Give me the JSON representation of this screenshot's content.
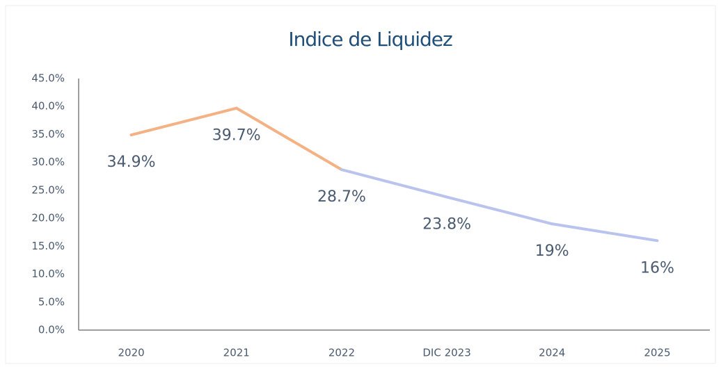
{
  "chart_data": {
    "type": "line",
    "title": "Indice de Liquidez",
    "categories": [
      "2020",
      "2021",
      "2022",
      "DIC 2023",
      "2024",
      "2025"
    ],
    "values": [
      34.9,
      39.7,
      28.7,
      23.8,
      19,
      16
    ],
    "value_labels": [
      "34.9%",
      "39.7%",
      "28.7%",
      "23.8%",
      "19%",
      "16%"
    ],
    "segment_colors": [
      "#f4b183",
      "#f4b183",
      "#b9c3ee",
      "#b9c3ee",
      "#b9c3ee"
    ],
    "ylim": [
      0,
      45
    ],
    "yticks": [
      {
        "value": 0,
        "label": "0.0%"
      },
      {
        "value": 5,
        "label": "5.0%"
      },
      {
        "value": 10,
        "label": "10.0%"
      },
      {
        "value": 15,
        "label": "15.0%"
      },
      {
        "value": 20,
        "label": "20.0%"
      },
      {
        "value": 25,
        "label": "25.0%"
      },
      {
        "value": 30,
        "label": "30.0%"
      },
      {
        "value": 35,
        "label": "35.0%"
      },
      {
        "value": 40,
        "label": "40.0%"
      },
      {
        "value": 45,
        "label": "45.0%"
      }
    ],
    "grid": false
  }
}
